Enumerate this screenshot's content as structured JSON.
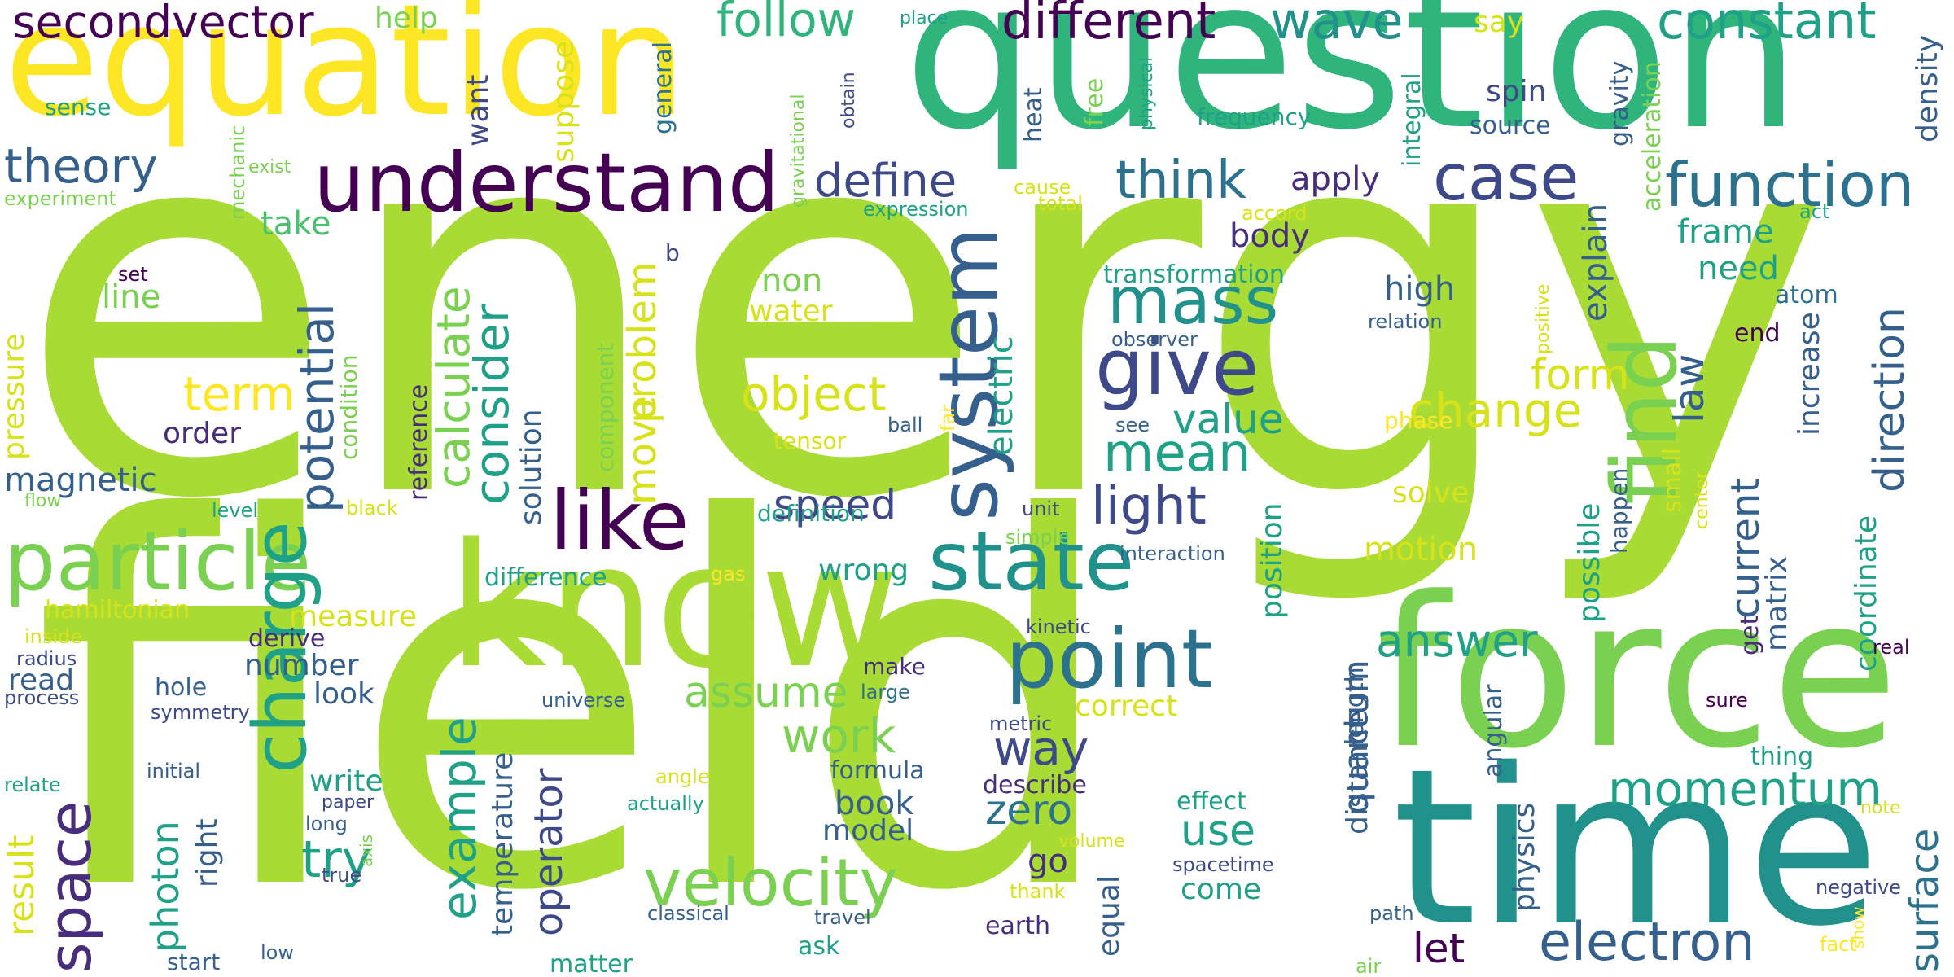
{
  "words": {
    "energy": "energy",
    "field": "field",
    "question": "question",
    "equation": "equation",
    "know": "know",
    "time": "time",
    "force": "force",
    "understand": "understand",
    "particle": "particle",
    "state": "state",
    "system": "system",
    "point": "point",
    "like": "like",
    "give": "give",
    "charge": "charge",
    "mass": "mass",
    "velocity": "velocity",
    "function": "function",
    "constant": "constant",
    "secondvector": "secondvector",
    "different": "different",
    "wave": "wave",
    "follow": "follow",
    "theory": "theory",
    "case": "case",
    "think": "think",
    "define": "define",
    "find": "find",
    "electron": "electron",
    "momentum": "momentum",
    "space": "space",
    "example": "example",
    "light": "light",
    "mean": "mean",
    "object": "object",
    "change": "change",
    "consider": "consider",
    "potential": "potential",
    "term": "term",
    "work": "work",
    "speed": "speed",
    "answer": "answer",
    "value": "value",
    "calculate": "calculate",
    "try": "try",
    "assume": "assume",
    "way": "way",
    "move": "move",
    "problem": "problem",
    "form": "form",
    "law": "law",
    "direction": "direction",
    "current": "current",
    "zero": "zero",
    "use": "use",
    "quantum": "quantum",
    "photon": "photon",
    "result": "result",
    "surface": "surface",
    "let": "let",
    "operator": "operator",
    "magnetic": "magnetic",
    "electric": "electric",
    "frame": "frame",
    "need": "need",
    "apply": "apply",
    "body": "body",
    "high": "high",
    "spin": "spin",
    "source": "source",
    "say": "say",
    "help": "help",
    "place": "place",
    "sense": "sense",
    "experiment": "experiment",
    "exist": "exist",
    "mechanic": "mechanic",
    "want": "want",
    "suppose": "suppose",
    "general": "general",
    "gravitational": "gravitational",
    "obtain": "obtain",
    "physical": "physical",
    "heat": "heat",
    "free": "free",
    "integral": "integral",
    "frequency": "frequency",
    "gravity": "gravity",
    "acceleration": "acceleration",
    "density": "density",
    "explain": "explain",
    "increase": "increase",
    "cause": "cause",
    "total": "total",
    "expression": "expression",
    "accord": "accord",
    "act": "act",
    "transformation": "transformation",
    "atom": "atom",
    "end": "end",
    "take": "take",
    "line": "line",
    "set": "set",
    "b": "b",
    "non": "non",
    "water": "water",
    "relation": "relation",
    "observer": "observer",
    "positive": "positive",
    "pressure": "pressure",
    "order": "order",
    "condition": "condition",
    "reference": "reference",
    "solution": "solution",
    "component": "component",
    "far": "far",
    "ball": "ball",
    "tensor": "tensor",
    "see": "see",
    "phase": "phase",
    "flow": "flow",
    "level": "level",
    "black": "black",
    "unit": "unit",
    "definition": "definition",
    "simple": "simple",
    "interaction": "interaction",
    "center": "center",
    "solve": "solve",
    "motion": "motion",
    "possible": "possible",
    "happen": "happen",
    "small": "small",
    "hamiltonian": "hamiltonian",
    "difference": "difference",
    "wrong": "wrong",
    "gas": "gas",
    "measure": "measure",
    "kinetic": "kinetic",
    "position": "position",
    "get": "get",
    "matrix": "matrix",
    "coordinate": "coordinate",
    "real": "real",
    "inside": "inside",
    "radius": "radius",
    "derive": "derive",
    "read": "read",
    "process": "process",
    "hole": "hole",
    "symmetry": "symmetry",
    "number": "number",
    "look": "look",
    "make": "make",
    "large": "large",
    "universe": "universe",
    "correct": "correct",
    "length": "length",
    "distance": "distance",
    "angular": "angular",
    "thing": "thing",
    "sure": "sure",
    "metric": "metric",
    "formula": "formula",
    "initial": "initial",
    "relate": "relate",
    "write": "write",
    "paper": "paper",
    "long": "long",
    "axis": "axis",
    "true": "true",
    "right": "right",
    "temperature": "temperature",
    "angle": "angle",
    "actually": "actually",
    "book": "book",
    "model": "model",
    "describe": "describe",
    "effect": "effect",
    "physics": "physics",
    "note": "note",
    "negative": "negative",
    "show": "show",
    "fact": "fact",
    "path": "path",
    "air": "air",
    "equal": "equal",
    "spacetime": "spacetime",
    "come": "come",
    "volume": "volume",
    "thank": "thank",
    "go": "go",
    "classical": "classical",
    "travel": "travel",
    "earth": "earth",
    "ask": "ask",
    "matter": "matter",
    "start": "start",
    "low": "low"
  },
  "palette": {
    "yellow": "#fde725",
    "yellow_green": "#d8e219",
    "lime": "#a8db34",
    "green": "#7ad151",
    "green2": "#4ac16d",
    "teal": "#2fb47c",
    "teal2": "#1fa187",
    "cyan": "#21918c",
    "blue": "#2c728e",
    "blue2": "#355f8d",
    "indigo": "#3e4989",
    "purple": "#472d7b",
    "dark_purple": "#440154",
    "background": "#ffffff"
  }
}
